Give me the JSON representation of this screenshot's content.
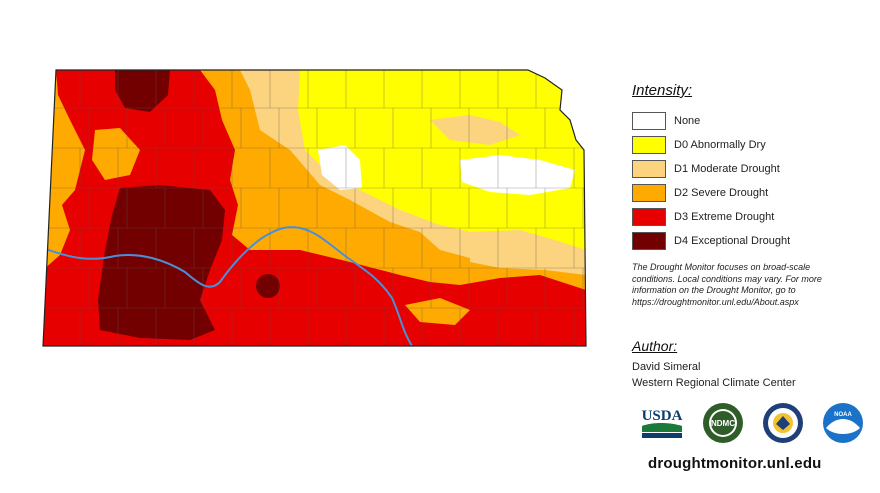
{
  "legend": {
    "title": "Intensity:",
    "items": [
      {
        "label": "None",
        "color": "#ffffff"
      },
      {
        "label": "D0 Abnormally Dry",
        "color": "#ffff00"
      },
      {
        "label": "D1 Moderate Drought",
        "color": "#fcd37f"
      },
      {
        "label": "D2 Severe Drought",
        "color": "#ffaa00"
      },
      {
        "label": "D3 Extreme Drought",
        "color": "#e60000"
      },
      {
        "label": "D4 Exceptional Drought",
        "color": "#730000"
      }
    ]
  },
  "note": {
    "line1": "The Drought Monitor focuses on broad-scale",
    "line2": "conditions. Local conditions may vary. For more",
    "line3": "information on the Drought Monitor, go to",
    "line4": "https://droughtmonitor.unl.edu/About.aspx"
  },
  "author": {
    "title": "Author:",
    "name": "David Simeral",
    "org": "Western Regional Climate Center"
  },
  "logos": {
    "usda": "USDA",
    "ndmc": "NDMC",
    "noaa": "NOAA"
  },
  "site": "droughtmonitor.unl.edu",
  "colors": {
    "county_line": "#555555",
    "river": "#4a90d9",
    "state_outline": "#222222"
  }
}
